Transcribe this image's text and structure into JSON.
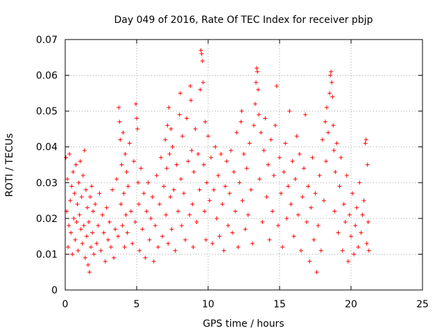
{
  "chart_data": {
    "type": "scatter",
    "title": "Day 049 of 2016, Rate Of TEC Index for receiver pbjp",
    "xlabel": "GPS time / hours",
    "ylabel": "ROTI / TECUs",
    "xlim": [
      0,
      25
    ],
    "ylim": [
      0,
      0.07
    ],
    "x_ticks": [
      0,
      5,
      10,
      15,
      20,
      25
    ],
    "x_tick_labels": [
      "0",
      "5",
      "10",
      "15",
      "20",
      "25"
    ],
    "y_ticks": [
      0,
      0.01,
      0.02,
      0.03,
      0.04,
      0.05,
      0.06,
      0.07
    ],
    "y_tick_labels": [
      "0",
      "0.01",
      "0.02",
      "0.03",
      "0.04",
      "0.05",
      "0.06",
      "0.07"
    ],
    "grid": true,
    "marker": "+",
    "color": "#ff0000",
    "series": [
      {
        "name": "ROTI",
        "points": [
          [
            0.05,
            0.037
          ],
          [
            0.1,
            0.022
          ],
          [
            0.15,
            0.031
          ],
          [
            0.2,
            0.012
          ],
          [
            0.25,
            0.018
          ],
          [
            0.3,
            0.038
          ],
          [
            0.35,
            0.025
          ],
          [
            0.4,
            0.016
          ],
          [
            0.45,
            0.029
          ],
          [
            0.5,
            0.01
          ],
          [
            0.55,
            0.033
          ],
          [
            0.6,
            0.02
          ],
          [
            0.65,
            0.027
          ],
          [
            0.7,
            0.014
          ],
          [
            0.75,
            0.035
          ],
          [
            0.8,
            0.019
          ],
          [
            0.85,
            0.024
          ],
          [
            0.9,
            0.011
          ],
          [
            0.95,
            0.03
          ],
          [
            1.0,
            0.021
          ],
          [
            1.05,
            0.036
          ],
          [
            1.1,
            0.017
          ],
          [
            1.15,
            0.026
          ],
          [
            1.2,
            0.013
          ],
          [
            1.25,
            0.032
          ],
          [
            1.3,
            0.018
          ],
          [
            1.35,
            0.039
          ],
          [
            1.4,
            0.009
          ],
          [
            1.45,
            0.028
          ],
          [
            1.5,
            0.015
          ],
          [
            1.55,
            0.023
          ],
          [
            1.6,
            0.007
          ],
          [
            1.65,
            0.019
          ],
          [
            1.7,
            0.005
          ],
          [
            1.75,
            0.026
          ],
          [
            1.8,
            0.012
          ],
          [
            1.85,
            0.029
          ],
          [
            1.9,
            0.016
          ],
          [
            1.95,
            0.022
          ],
          [
            2.0,
            0.01
          ],
          [
            2.1,
            0.024
          ],
          [
            2.2,
            0.013
          ],
          [
            2.3,
            0.018
          ],
          [
            2.4,
            0.027
          ],
          [
            2.5,
            0.011
          ],
          [
            2.6,
            0.021
          ],
          [
            2.7,
            0.016
          ],
          [
            2.8,
            0.008
          ],
          [
            2.9,
            0.023
          ],
          [
            3.0,
            0.014
          ],
          [
            3.1,
            0.019
          ],
          [
            3.2,
            0.012
          ],
          [
            3.3,
            0.028
          ],
          [
            3.4,
            0.009
          ],
          [
            3.5,
            0.017
          ],
          [
            3.6,
            0.031
          ],
          [
            3.7,
            0.015
          ],
          [
            3.75,
            0.051
          ],
          [
            3.8,
            0.047
          ],
          [
            3.85,
            0.042
          ],
          [
            3.9,
            0.024
          ],
          [
            3.95,
            0.035
          ],
          [
            4.0,
            0.018
          ],
          [
            4.05,
            0.044
          ],
          [
            4.1,
            0.027
          ],
          [
            4.15,
            0.012
          ],
          [
            4.2,
            0.038
          ],
          [
            4.25,
            0.021
          ],
          [
            4.3,
            0.033
          ],
          [
            4.35,
            0.016
          ],
          [
            4.4,
            0.029
          ],
          [
            4.5,
            0.041
          ],
          [
            4.6,
            0.022
          ],
          [
            4.7,
            0.013
          ],
          [
            4.8,
            0.036
          ],
          [
            4.9,
            0.019
          ],
          [
            4.95,
            0.052
          ],
          [
            5.0,
            0.048
          ],
          [
            5.05,
            0.045
          ],
          [
            5.1,
            0.03
          ],
          [
            5.15,
            0.024
          ],
          [
            5.2,
            0.011
          ],
          [
            5.3,
            0.034
          ],
          [
            5.4,
            0.017
          ],
          [
            5.5,
            0.027
          ],
          [
            5.6,
            0.009
          ],
          [
            5.7,
            0.022
          ],
          [
            5.8,
            0.03
          ],
          [
            5.9,
            0.014
          ],
          [
            6.0,
            0.02
          ],
          [
            6.1,
            0.026
          ],
          [
            6.2,
            0.008
          ],
          [
            6.3,
            0.018
          ],
          [
            6.4,
            0.032
          ],
          [
            6.5,
            0.012
          ],
          [
            6.6,
            0.024
          ],
          [
            6.7,
            0.037
          ],
          [
            6.8,
            0.015
          ],
          [
            6.9,
            0.029
          ],
          [
            7.0,
            0.042
          ],
          [
            7.05,
            0.021
          ],
          [
            7.1,
            0.034
          ],
          [
            7.15,
            0.046
          ],
          [
            7.2,
            0.013
          ],
          [
            7.25,
            0.051
          ],
          [
            7.3,
            0.038
          ],
          [
            7.35,
            0.026
          ],
          [
            7.4,
            0.045
          ],
          [
            7.45,
            0.017
          ],
          [
            7.5,
            0.04
          ],
          [
            7.6,
            0.028
          ],
          [
            7.7,
            0.011
          ],
          [
            7.8,
            0.035
          ],
          [
            7.9,
            0.022
          ],
          [
            8.0,
            0.049
          ],
          [
            8.05,
            0.055
          ],
          [
            8.1,
            0.031
          ],
          [
            8.15,
            0.018
          ],
          [
            8.2,
            0.043
          ],
          [
            8.3,
            0.027
          ],
          [
            8.4,
            0.014
          ],
          [
            8.5,
            0.048
          ],
          [
            8.6,
            0.036
          ],
          [
            8.7,
            0.021
          ],
          [
            8.75,
            0.057
          ],
          [
            8.8,
            0.053
          ],
          [
            8.85,
            0.039
          ],
          [
            8.9,
            0.024
          ],
          [
            8.95,
            0.012
          ],
          [
            9.0,
            0.033
          ],
          [
            9.1,
            0.045
          ],
          [
            9.2,
            0.019
          ],
          [
            9.3,
            0.038
          ],
          [
            9.4,
            0.028
          ],
          [
            9.45,
            0.056
          ],
          [
            9.5,
            0.067
          ],
          [
            9.55,
            0.066
          ],
          [
            9.6,
            0.064
          ],
          [
            9.65,
            0.058
          ],
          [
            9.7,
            0.035
          ],
          [
            9.75,
            0.022
          ],
          [
            9.8,
            0.047
          ],
          [
            9.85,
            0.014
          ],
          [
            9.9,
            0.03
          ],
          [
            10.0,
            0.043
          ],
          [
            10.1,
            0.025
          ],
          [
            10.2,
            0.037
          ],
          [
            10.3,
            0.013
          ],
          [
            10.4,
            0.028
          ],
          [
            10.5,
            0.04
          ],
          [
            10.6,
            0.02
          ],
          [
            10.7,
            0.032
          ],
          [
            10.8,
            0.015
          ],
          [
            10.9,
            0.038
          ],
          [
            11.0,
            0.024
          ],
          [
            11.1,
            0.011
          ],
          [
            11.2,
            0.029
          ],
          [
            11.3,
            0.036
          ],
          [
            11.4,
            0.018
          ],
          [
            11.5,
            0.027
          ],
          [
            11.6,
            0.039
          ],
          [
            11.7,
            0.016
          ],
          [
            11.8,
            0.033
          ],
          [
            11.9,
            0.022
          ],
          [
            12.0,
            0.044
          ],
          [
            12.1,
            0.012
          ],
          [
            12.2,
            0.03
          ],
          [
            12.3,
            0.047
          ],
          [
            12.35,
            0.05
          ],
          [
            12.4,
            0.025
          ],
          [
            12.5,
            0.038
          ],
          [
            12.6,
            0.017
          ],
          [
            12.7,
            0.034
          ],
          [
            12.8,
            0.021
          ],
          [
            12.9,
            0.041
          ],
          [
            13.0,
            0.028
          ],
          [
            13.1,
            0.013
          ],
          [
            13.2,
            0.046
          ],
          [
            13.3,
            0.052
          ],
          [
            13.35,
            0.058
          ],
          [
            13.4,
            0.062
          ],
          [
            13.45,
            0.061
          ],
          [
            13.5,
            0.056
          ],
          [
            13.55,
            0.049
          ],
          [
            13.6,
            0.031
          ],
          [
            13.7,
            0.044
          ],
          [
            13.8,
            0.019
          ],
          [
            13.9,
            0.039
          ],
          [
            14.0,
            0.048
          ],
          [
            14.1,
            0.026
          ],
          [
            14.2,
            0.035
          ],
          [
            14.3,
            0.014
          ],
          [
            14.4,
            0.042
          ],
          [
            14.5,
            0.022
          ],
          [
            14.6,
            0.032
          ],
          [
            14.7,
            0.046
          ],
          [
            14.8,
            0.057
          ],
          [
            14.9,
            0.018
          ],
          [
            15.0,
            0.037
          ],
          [
            15.1,
            0.027
          ],
          [
            15.2,
            0.012
          ],
          [
            15.3,
            0.033
          ],
          [
            15.4,
            0.041
          ],
          [
            15.5,
            0.02
          ],
          [
            15.6,
            0.029
          ],
          [
            15.7,
            0.05
          ],
          [
            15.8,
            0.024
          ],
          [
            15.9,
            0.036
          ],
          [
            16.0,
            0.015
          ],
          [
            16.1,
            0.031
          ],
          [
            16.2,
            0.043
          ],
          [
            16.3,
            0.021
          ],
          [
            16.4,
            0.038
          ],
          [
            16.5,
            0.011
          ],
          [
            16.6,
            0.026
          ],
          [
            16.7,
            0.034
          ],
          [
            16.8,
            0.049
          ],
          [
            16.9,
            0.019
          ],
          [
            17.0,
            0.029
          ],
          [
            17.1,
            0.008
          ],
          [
            17.2,
            0.023
          ],
          [
            17.3,
            0.037
          ],
          [
            17.4,
            0.014
          ],
          [
            17.5,
            0.027
          ],
          [
            17.6,
            0.005
          ],
          [
            17.7,
            0.018
          ],
          [
            17.8,
            0.032
          ],
          [
            17.9,
            0.011
          ],
          [
            18.0,
            0.042
          ],
          [
            18.1,
            0.025
          ],
          [
            18.2,
            0.047
          ],
          [
            18.25,
            0.036
          ],
          [
            18.3,
            0.051
          ],
          [
            18.4,
            0.044
          ],
          [
            18.5,
            0.055
          ],
          [
            18.55,
            0.06
          ],
          [
            18.6,
            0.061
          ],
          [
            18.65,
            0.058
          ],
          [
            18.7,
            0.054
          ],
          [
            18.75,
            0.046
          ],
          [
            18.8,
            0.039
          ],
          [
            18.85,
            0.022
          ],
          [
            18.9,
            0.033
          ],
          [
            19.0,
            0.041
          ],
          [
            19.1,
            0.016
          ],
          [
            19.2,
            0.029
          ],
          [
            19.3,
            0.037
          ],
          [
            19.4,
            0.011
          ],
          [
            19.5,
            0.024
          ],
          [
            19.6,
            0.019
          ],
          [
            19.7,
            0.032
          ],
          [
            19.8,
            0.008
          ],
          [
            19.9,
            0.021
          ],
          [
            20.0,
            0.015
          ],
          [
            20.1,
            0.027
          ],
          [
            20.2,
            0.01
          ],
          [
            20.3,
            0.018
          ],
          [
            20.4,
            0.023
          ],
          [
            20.5,
            0.012
          ],
          [
            20.6,
            0.03
          ],
          [
            20.7,
            0.016
          ],
          [
            20.8,
            0.021
          ],
          [
            20.9,
            0.025
          ],
          [
            21.0,
            0.041
          ],
          [
            21.05,
            0.042
          ],
          [
            21.1,
            0.013
          ],
          [
            21.15,
            0.035
          ],
          [
            21.2,
            0.019
          ],
          [
            21.25,
            0.011
          ]
        ]
      }
    ]
  }
}
